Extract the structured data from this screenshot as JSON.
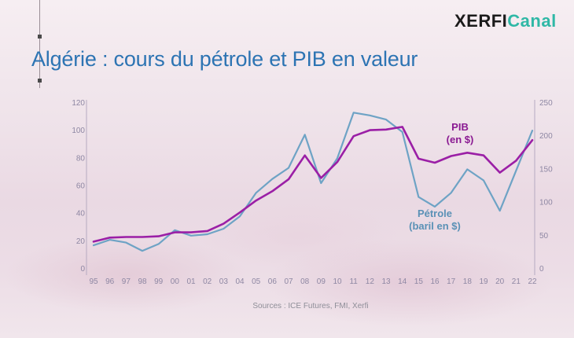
{
  "brand": {
    "logo_part1": "XERFI",
    "logo_part2": "Canal"
  },
  "title": "Algérie : cours du pétrole et PIB en valeur",
  "source": "Sources : ICE Futures, FMI, Xerfi",
  "colors": {
    "title": "#2d74b3",
    "petrole": "#6ea3c5",
    "pib": "#9b1fa6",
    "axis": "#8e87a3"
  },
  "chart_data": {
    "type": "line",
    "categories": [
      "95",
      "96",
      "97",
      "98",
      "99",
      "00",
      "01",
      "02",
      "03",
      "04",
      "05",
      "06",
      "07",
      "08",
      "09",
      "10",
      "11",
      "12",
      "13",
      "14",
      "15",
      "16",
      "17",
      "18",
      "19",
      "20",
      "21",
      "22"
    ],
    "left_axis": {
      "ticks": [
        0,
        20,
        40,
        60,
        80,
        100,
        120
      ],
      "range": [
        0,
        120
      ]
    },
    "right_axis": {
      "ticks": [
        0,
        50,
        100,
        150,
        200,
        250
      ],
      "range": [
        0,
        250
      ]
    },
    "grid": false,
    "series": [
      {
        "name": "Pétrole (baril en $)",
        "label_lines": [
          "Pétrole",
          "(baril en $)"
        ],
        "axis": "left",
        "values": [
          17,
          21,
          19,
          13,
          18,
          28,
          24,
          25,
          29,
          38,
          55,
          65,
          73,
          97,
          62,
          80,
          113,
          111,
          108,
          99,
          52,
          45,
          55,
          72,
          64,
          42,
          71,
          100
        ]
      },
      {
        "name": "PIB (en $)",
        "label_lines": [
          "PIB",
          "(en $)"
        ],
        "axis": "right",
        "values": [
          41,
          47,
          48,
          48,
          49,
          55,
          55,
          57,
          68,
          85,
          103,
          117,
          135,
          171,
          137,
          161,
          200,
          209,
          210,
          214,
          166,
          160,
          170,
          175,
          171,
          145,
          163,
          194
        ]
      }
    ]
  }
}
